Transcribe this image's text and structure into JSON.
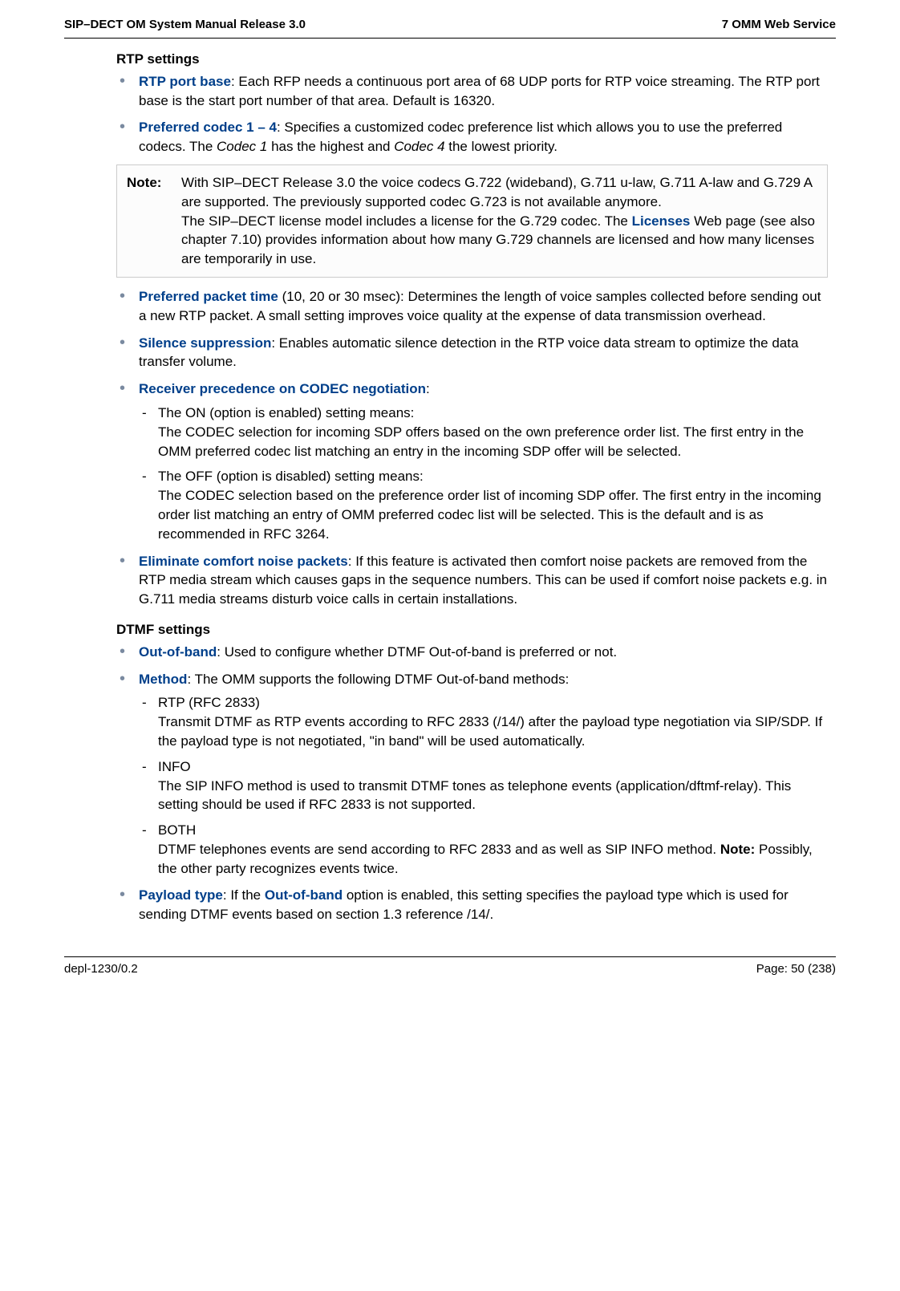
{
  "header": {
    "left": "SIP–DECT OM System Manual Release 3.0",
    "right": "7 OMM Web Service"
  },
  "footer": {
    "left": "depl-1230/0.2",
    "right": "Page: 50 (238)"
  },
  "rtp": {
    "heading": "RTP settings",
    "port_base": {
      "term": "RTP port base",
      "text": ": Each RFP needs a continuous port area of 68 UDP ports for RTP voice streaming. The RTP port base is the start port number of that area. Default is 16320."
    },
    "codec": {
      "term": "Preferred codec 1 – 4",
      "text_before": ": Specifies a customized codec preference list which allows you to use the preferred codecs. The ",
      "codec1": "Codec 1",
      "text_mid": " has the highest and ",
      "codec4": "Codec 4",
      "text_after": " the lowest priority."
    },
    "note": {
      "label": "Note:",
      "p1": "With SIP–DECT Release 3.0 the voice codecs G.722 (wideband), G.711 u-law, G.711 A-law and G.729 A are supported. The previously supported codec G.723 is not available anymore.",
      "p2_before": "The SIP–DECT license model includes a license for the G.729 codec. The ",
      "p2_link": "Licenses",
      "p2_after": " Web page (see also chapter 7.10) provides information about how many G.729 channels are licensed and how many licenses are temporarily in use."
    },
    "packet_time": {
      "term": "Preferred packet time",
      "text": " (10, 20 or 30 msec): Determines the length of voice samples collected before sending out a new RTP packet. A small setting improves voice quality at the expense of data transmission overhead."
    },
    "silence": {
      "term": "Silence suppression",
      "text": ": Enables automatic silence detection in the RTP voice data stream to optimize the data transfer volume."
    },
    "receiver": {
      "term": "Receiver precedence on CODEC negotiation",
      "colon": ":",
      "on_head": "The ON (option is enabled) setting means:",
      "on_body": "The CODEC selection for incoming SDP offers based on the own preference order list. The first entry in the OMM preferred codec list matching an entry in the incoming SDP offer will be selected.",
      "off_head": "The OFF (option is disabled) setting means:",
      "off_body": "The CODEC selection based on the preference order list of incoming SDP offer. The first entry in the incoming order list matching an entry of OMM preferred codec list will be selected. This is the default and is as recommended in RFC 3264."
    },
    "eliminate": {
      "term": "Eliminate comfort noise packets",
      "text": ": If this feature is activated then comfort noise packets are removed from the RTP media stream which causes gaps in the sequence numbers. This can be used if comfort noise packets e.g. in G.711 media streams disturb voice calls in certain installations."
    }
  },
  "dtmf": {
    "heading": "DTMF settings",
    "oob": {
      "term": "Out-of-band",
      "text": ": Used to configure whether DTMF Out-of-band is preferred or not."
    },
    "method": {
      "term": "Method",
      "text": ": The OMM supports the following DTMF Out-of-band methods:",
      "rtp_head": "RTP (RFC 2833)",
      "rtp_body": "Transmit DTMF as RTP events according to RFC 2833 (/14/) after the payload type negotiation via SIP/SDP. If the payload type is not negotiated, \"in band\" will be used automatically.",
      "info_head": "INFO",
      "info_body": "The SIP INFO method is used to transmit DTMF tones as telephone events (application/dftmf-relay). This setting should be used if RFC 2833 is not supported.",
      "both_head": "BOTH",
      "both_body_before": "DTMF telephones events are send according to RFC 2833 and as well as SIP INFO method. ",
      "both_note_label": "Note:",
      "both_body_after": " Possibly, the other party recognizes events twice."
    },
    "payload": {
      "term": "Payload type",
      "before": ": If the ",
      "link": "Out-of-band",
      "after": " option is enabled, this setting specifies the payload type which is used for sending DTMF events based on section 1.3 reference /14/."
    }
  }
}
